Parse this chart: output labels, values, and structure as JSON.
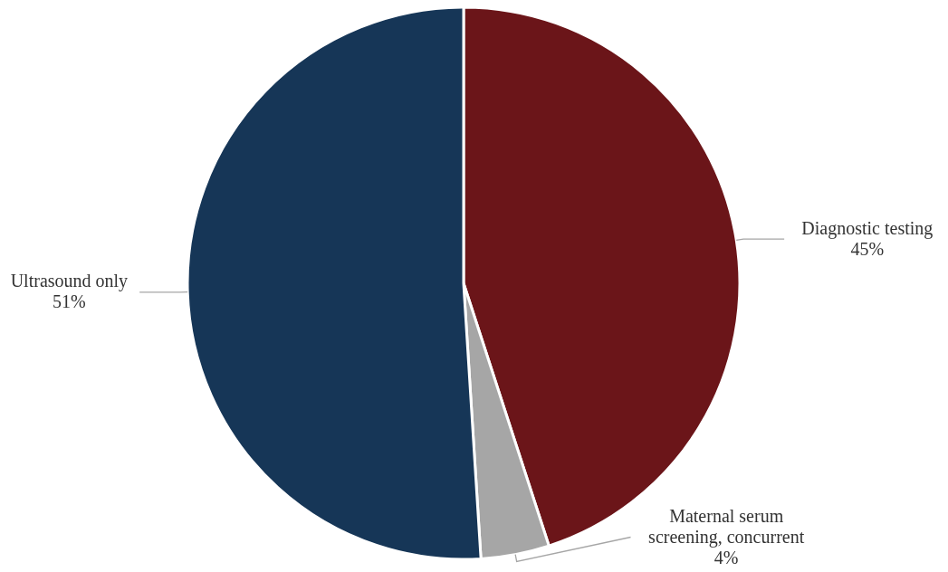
{
  "chart_data": {
    "type": "pie",
    "categories": [
      "Diagnostic testing",
      "Maternal serum screening, concurrent",
      "Ultrasound only"
    ],
    "values": [
      45,
      4,
      51
    ],
    "colors": [
      "#6b1519",
      "#a6a6a6",
      "#163657"
    ],
    "value_labels": [
      "45%",
      "4%",
      "51%"
    ]
  }
}
